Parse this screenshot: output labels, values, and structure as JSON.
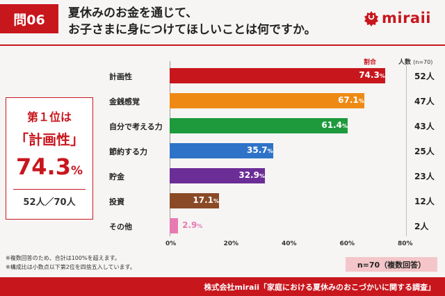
{
  "header": {
    "badge": "問06",
    "question_line1": "夏休みのお金を通じて、",
    "question_line2": "お子さまに身につけてほしいことは何ですか。",
    "logo_text": "miraii",
    "brand_color": "#c8161d"
  },
  "summary": {
    "rank_label": "第１位は",
    "top_item": "「計画性」",
    "top_value": "74.3",
    "top_value_unit": "%",
    "count_label": "52人／70人"
  },
  "columns": {
    "rate_label": "割合",
    "count_label": "人数",
    "count_n": "(n=70)"
  },
  "chart_data": {
    "type": "bar",
    "orientation": "horizontal",
    "categories": [
      "計画性",
      "金銭感覚",
      "自分で考える力",
      "節約する力",
      "貯金",
      "投資",
      "その他"
    ],
    "values": [
      74.3,
      67.1,
      61.4,
      35.7,
      32.9,
      17.1,
      2.9
    ],
    "value_unit": "%",
    "counts": [
      "52人",
      "47人",
      "43人",
      "25人",
      "23人",
      "12人",
      "2人"
    ],
    "colors": [
      "#c8161d",
      "#ee8a14",
      "#1e9a3c",
      "#2f73c9",
      "#6b2d96",
      "#8a4a26",
      "#e87ab2"
    ],
    "xlim": [
      0,
      80
    ],
    "x_ticks": [
      "0%",
      "20%",
      "40%",
      "60%",
      "80%"
    ],
    "grid": false
  },
  "notes": [
    "※複数回答のため、合計は100%を超えます。",
    "※構成比は小数点以下第2位を四捨五入しています。"
  ],
  "sample_label": "n=70（複数回答）",
  "footer": "株式会社miraii「家庭における夏休みのおこづかいに関する調査」"
}
